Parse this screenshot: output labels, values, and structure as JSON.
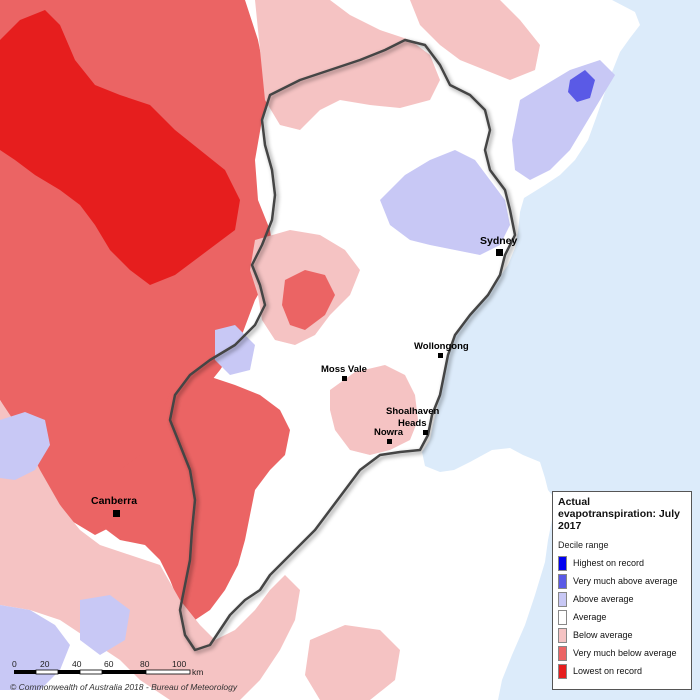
{
  "legend": {
    "title": "Actual evapotranspiration: July 2017",
    "subtitle": "Decile range",
    "items": [
      {
        "label": "Highest on record",
        "color": "#0000f0"
      },
      {
        "label": "Very much above average",
        "color": "#5a5ae6"
      },
      {
        "label": "Above average",
        "color": "#c8c8f5"
      },
      {
        "label": "Average",
        "color": "#ffffff"
      },
      {
        "label": "Below average",
        "color": "#f5c3c3"
      },
      {
        "label": "Very much below average",
        "color": "#eb6464"
      },
      {
        "label": "Lowest on record",
        "color": "#e61e1e"
      }
    ]
  },
  "cities": [
    {
      "name": "Sydney"
    },
    {
      "name": "Wollongong"
    },
    {
      "name": "Moss Vale"
    },
    {
      "name": "Shoalhaven"
    },
    {
      "name": "Heads"
    },
    {
      "name": "Nowra"
    },
    {
      "name": "Canberra"
    }
  ],
  "scale_bar": {
    "ticks": [
      "0",
      "20",
      "40",
      "60",
      "80",
      "100"
    ],
    "unit": "km"
  },
  "copyright": "© Commonwealth of Australia 2018 - Bureau of Meteorology",
  "colors": {
    "ocean": "#dcebfa",
    "land": "#ffffff",
    "boundary": "#333333"
  }
}
